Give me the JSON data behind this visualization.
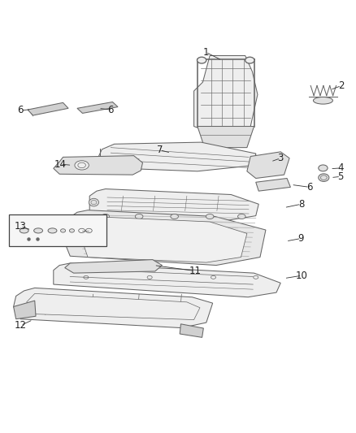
{
  "title": "",
  "background_color": "#ffffff",
  "fig_width": 4.38,
  "fig_height": 5.33,
  "dpi": 100,
  "label_fontsize": 8.5,
  "line_color": "#333333",
  "text_color": "#222222",
  "part_line_color": "#666666",
  "part_fill_light": "#eeeeee",
  "part_fill_mid": "#e0e0e0",
  "part_fill_dark": "#d0d0d0"
}
